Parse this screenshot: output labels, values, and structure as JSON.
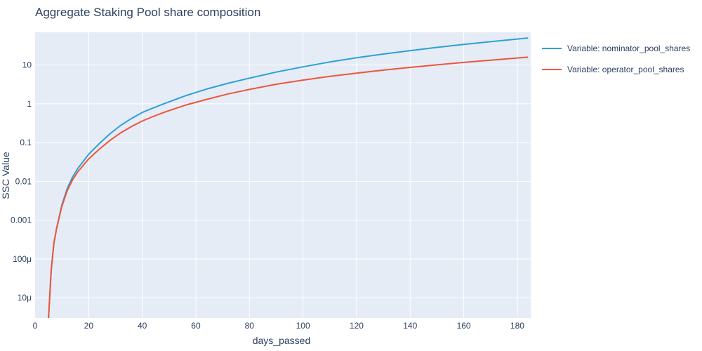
{
  "chart_data": {
    "type": "line",
    "title": "Aggregate Staking Pool share composition",
    "xlabel": "days_passed",
    "ylabel": "SSC Value",
    "xlim": [
      0,
      185
    ],
    "ylim": [
      3e-06,
      70
    ],
    "yscale": "log",
    "grid": true,
    "legend_position": "right",
    "x_ticks": [
      0,
      20,
      40,
      60,
      80,
      100,
      120,
      140,
      160,
      180
    ],
    "y_ticks": [
      {
        "value": 1e-05,
        "label": "10μ"
      },
      {
        "value": 0.0001,
        "label": "100μ"
      },
      {
        "value": 0.001,
        "label": "0.001"
      },
      {
        "value": 0.01,
        "label": "0.01"
      },
      {
        "value": 0.1,
        "label": "0.1"
      },
      {
        "value": 1,
        "label": "1"
      },
      {
        "value": 10,
        "label": "10"
      }
    ],
    "series": [
      {
        "name": "Variable: nominator_pool_shares",
        "color": "#2ea0d6",
        "x": [
          5,
          5.5,
          6,
          7,
          8,
          10,
          12,
          14,
          16,
          18,
          20,
          24,
          28,
          32,
          36,
          40,
          44,
          48,
          56,
          64,
          72,
          80,
          90,
          100,
          110,
          120,
          130,
          140,
          150,
          160,
          170,
          184
        ],
        "y": [
          3e-06,
          1.2e-05,
          5e-05,
          0.00025,
          0.0006,
          0.0025,
          0.0066,
          0.013,
          0.022,
          0.033,
          0.05,
          0.095,
          0.17,
          0.28,
          0.42,
          0.6,
          0.78,
          1.0,
          1.6,
          2.4,
          3.4,
          4.6,
          6.6,
          9.0,
          12.0,
          15.4,
          19.2,
          23.6,
          28.6,
          34.0,
          40.0,
          50.0
        ]
      },
      {
        "name": "Variable: operator_pool_shares",
        "color": "#ef553b",
        "x": [
          5,
          5.5,
          6,
          7,
          8,
          10,
          12,
          14,
          16,
          18,
          20,
          24,
          28,
          32,
          36,
          40,
          44,
          48,
          56,
          64,
          72,
          80,
          90,
          100,
          110,
          120,
          130,
          140,
          150,
          160,
          170,
          184
        ],
        "y": [
          3e-06,
          1.2e-05,
          5e-05,
          0.00025,
          0.0006,
          0.0023,
          0.0058,
          0.011,
          0.018,
          0.026,
          0.038,
          0.068,
          0.115,
          0.18,
          0.26,
          0.36,
          0.47,
          0.6,
          0.92,
          1.3,
          1.8,
          2.35,
          3.2,
          4.1,
          5.1,
          6.2,
          7.4,
          8.7,
          10.1,
          11.7,
          13.3,
          16.0
        ]
      }
    ]
  }
}
